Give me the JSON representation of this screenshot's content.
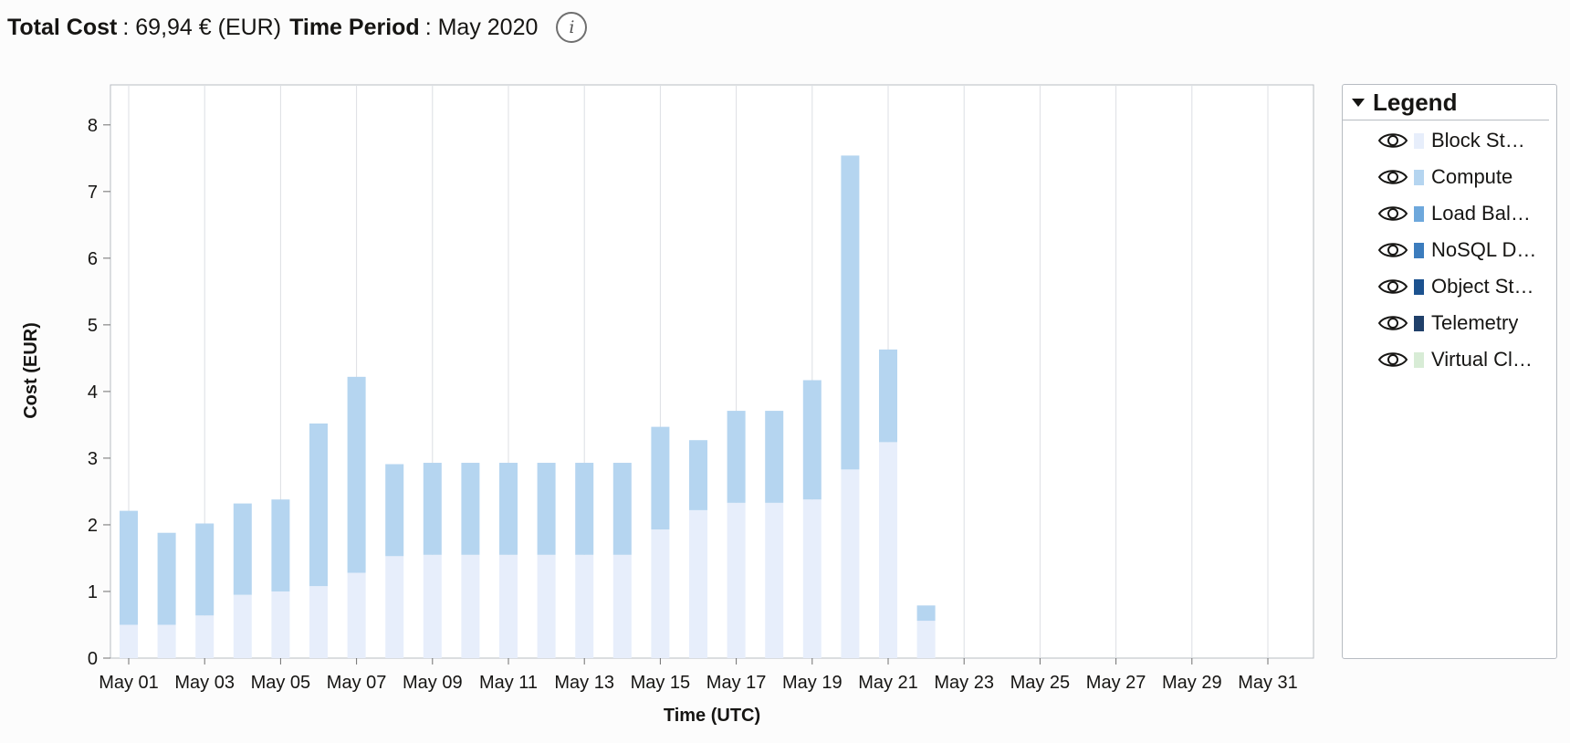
{
  "header": {
    "total_cost_label": "Total Cost",
    "total_cost_value": ": 69,94 € (EUR)",
    "time_period_label": "Time Period",
    "time_period_value": ": May 2020",
    "info_icon": "info-icon",
    "info_glyph": "i"
  },
  "legend": {
    "title": "Legend",
    "toggle_icon": "caret-down-icon",
    "items": [
      {
        "label": "Block St…",
        "color": "#e7eefb",
        "icon": "eye-icon"
      },
      {
        "label": "Compute",
        "color": "#b5d5f0",
        "icon": "eye-icon"
      },
      {
        "label": "Load Bal…",
        "color": "#6ea8dc",
        "icon": "eye-icon"
      },
      {
        "label": "NoSQL D…",
        "color": "#3c7cbd",
        "icon": "eye-icon"
      },
      {
        "label": "Object St…",
        "color": "#1c528f",
        "icon": "eye-icon"
      },
      {
        "label": "Telemetry",
        "color": "#20406a",
        "icon": "eye-icon"
      },
      {
        "label": "Virtual Cl…",
        "color": "#d8ecd6",
        "icon": "eye-icon"
      }
    ]
  },
  "chart_data": {
    "type": "bar",
    "stacked": true,
    "xlabel": "Time (UTC)",
    "ylabel": "Cost (EUR)",
    "ylim": [
      0,
      8.6
    ],
    "yticks": [
      0,
      1,
      2,
      3,
      4,
      5,
      6,
      7,
      8
    ],
    "grid": "vertical",
    "legend_position": "right",
    "categories": [
      "May 01",
      "May 02",
      "May 03",
      "May 04",
      "May 05",
      "May 06",
      "May 07",
      "May 08",
      "May 09",
      "May 10",
      "May 11",
      "May 12",
      "May 13",
      "May 14",
      "May 15",
      "May 16",
      "May 17",
      "May 18",
      "May 19",
      "May 20",
      "May 21",
      "May 22",
      "May 23",
      "May 24",
      "May 25",
      "May 26",
      "May 27",
      "May 28",
      "May 29",
      "May 30",
      "May 31"
    ],
    "xtick_labels": [
      "May 01",
      "May 03",
      "May 05",
      "May 07",
      "May 09",
      "May 11",
      "May 13",
      "May 15",
      "May 17",
      "May 19",
      "May 21",
      "May 23",
      "May 25",
      "May 27",
      "May 29",
      "May 31"
    ],
    "series": [
      {
        "name": "Block St…",
        "color": "#e7eefb",
        "values": [
          0.5,
          0.5,
          0.64,
          0.95,
          1.0,
          1.08,
          1.28,
          1.53,
          1.55,
          1.55,
          1.55,
          1.55,
          1.55,
          1.55,
          1.93,
          2.22,
          2.33,
          2.33,
          2.38,
          2.83,
          3.24,
          0.56,
          0,
          0,
          0,
          0,
          0,
          0,
          0,
          0,
          0
        ]
      },
      {
        "name": "Compute",
        "color": "#b5d5f0",
        "values": [
          1.71,
          1.38,
          1.38,
          1.37,
          1.38,
          2.44,
          2.94,
          1.38,
          1.38,
          1.38,
          1.38,
          1.38,
          1.38,
          1.38,
          1.54,
          1.05,
          1.38,
          1.38,
          1.79,
          4.71,
          1.39,
          0.23,
          0,
          0,
          0,
          0,
          0,
          0,
          0,
          0,
          0
        ]
      }
    ]
  }
}
